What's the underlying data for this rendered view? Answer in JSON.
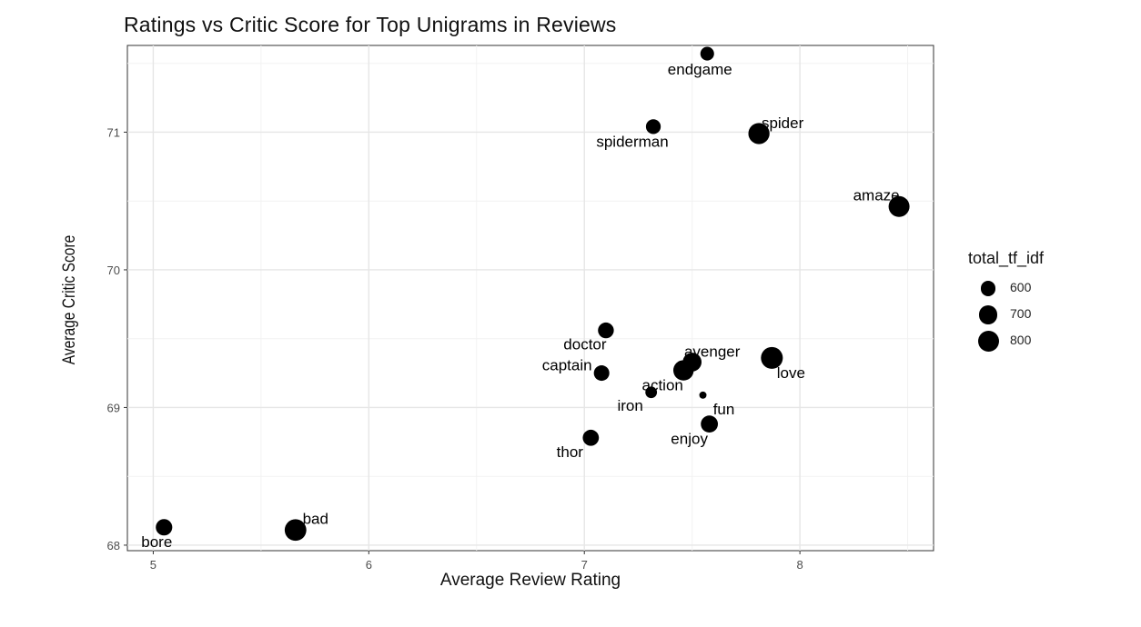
{
  "chart_data": {
    "type": "scatter",
    "title": "Ratings vs Critic Score for Top Unigrams in Reviews",
    "xlabel": "Average Review Rating",
    "ylabel": "Average Critic Score",
    "xlim": [
      4.88,
      8.62
    ],
    "ylim": [
      67.96,
      71.63
    ],
    "x_ticks": [
      5,
      6,
      7,
      8
    ],
    "y_ticks": [
      68,
      69,
      70,
      71
    ],
    "grid": true,
    "size_variable": "total_tf_idf",
    "legend": {
      "title": "total_tf_idf",
      "placement": "right",
      "entries": [
        {
          "label": "600",
          "value": 600
        },
        {
          "label": "700",
          "value": 700
        },
        {
          "label": "800",
          "value": 800
        }
      ]
    },
    "points": [
      {
        "label": "endgame",
        "x": 7.57,
        "y": 71.57,
        "size": 560
      },
      {
        "label": "spiderman",
        "x": 7.32,
        "y": 71.04,
        "size": 590
      },
      {
        "label": "spider",
        "x": 7.81,
        "y": 70.99,
        "size": 810
      },
      {
        "label": "amaze",
        "x": 8.46,
        "y": 70.46,
        "size": 800
      },
      {
        "label": "doctor",
        "x": 7.1,
        "y": 69.56,
        "size": 620
      },
      {
        "label": "avenger",
        "x": 7.5,
        "y": 69.33,
        "size": 720
      },
      {
        "label": "love",
        "x": 7.87,
        "y": 69.36,
        "size": 840
      },
      {
        "label": "captain",
        "x": 7.08,
        "y": 69.25,
        "size": 610
      },
      {
        "label": "action",
        "x": 7.46,
        "y": 69.27,
        "size": 780
      },
      {
        "label": "iron",
        "x": 7.31,
        "y": 69.11,
        "size": 510
      },
      {
        "label": "fun",
        "x": 7.55,
        "y": 69.09,
        "size": 430
      },
      {
        "label": "enjoy",
        "x": 7.58,
        "y": 68.88,
        "size": 660
      },
      {
        "label": "thor",
        "x": 7.03,
        "y": 68.78,
        "size": 630
      },
      {
        "label": "bore",
        "x": 5.05,
        "y": 68.13,
        "size": 640
      },
      {
        "label": "bad",
        "x": 5.66,
        "y": 68.11,
        "size": 830
      }
    ]
  }
}
